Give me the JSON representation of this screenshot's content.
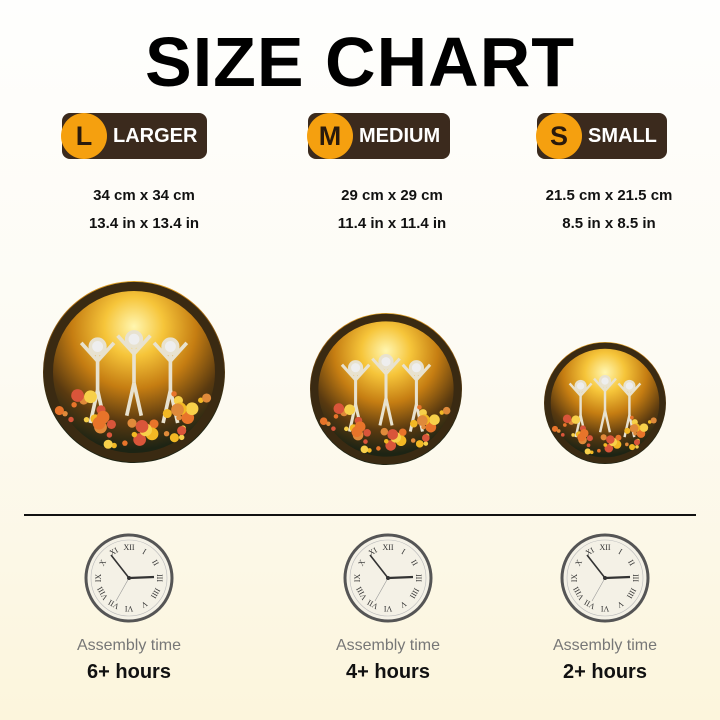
{
  "title": "SIZE CHART",
  "sizes": [
    {
      "letter": "L",
      "name": "LARGER",
      "cm": "34 cm x 34 cm",
      "in": "13.4 in x 13.4 in",
      "assembly_label": "Assembly time",
      "assembly_time": "6+ hours"
    },
    {
      "letter": "M",
      "name": "MEDIUM",
      "cm": "29 cm x 29 cm",
      "in": "11.4 in x 11.4 in",
      "assembly_label": "Assembly time",
      "assembly_time": "4+ hours"
    },
    {
      "letter": "S",
      "name": "SMALL",
      "cm": "21.5 cm x 21.5 cm",
      "in": "8.5 in x 8.5 in",
      "assembly_label": "Assembly time",
      "assembly_time": "2+ hours"
    }
  ],
  "colors": {
    "badge_circle": "#f5a00f",
    "badge_bg": "#3b2a1d"
  },
  "clock_numerals": [
    "XII",
    "I",
    "II",
    "III",
    "IIII",
    "V",
    "VI",
    "VII",
    "VIII",
    "IX",
    "X",
    "XI"
  ]
}
